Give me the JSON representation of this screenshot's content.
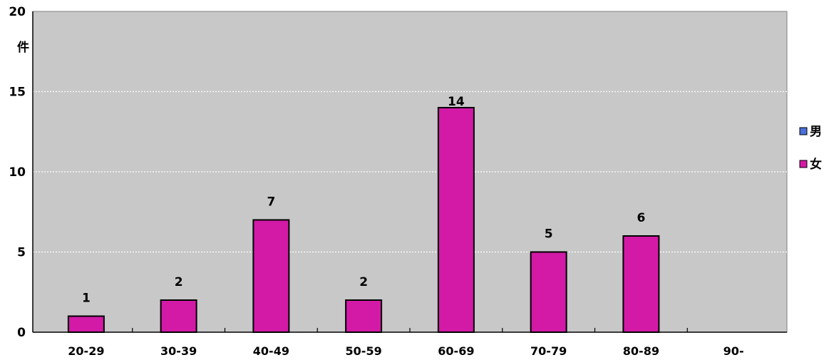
{
  "chart_data": {
    "type": "bar",
    "title": "",
    "xlabel": "",
    "ylabel": "件",
    "ylim": [
      0,
      20
    ],
    "yticks": [
      0,
      5,
      10,
      15,
      20
    ],
    "grid": true,
    "legend_position": "right",
    "categories": [
      "20-29",
      "30-39",
      "40-49",
      "50-59",
      "60-69",
      "70-79",
      "80-89",
      "90-"
    ],
    "series": [
      {
        "name": "男",
        "color": "#4a6fd8",
        "values": [
          null,
          null,
          null,
          null,
          null,
          null,
          null,
          null
        ]
      },
      {
        "name": "女",
        "color": "#d21aa6",
        "values": [
          1,
          2,
          7,
          2,
          14,
          5,
          6,
          null
        ]
      }
    ],
    "data_labels": [
      "1",
      "2",
      "7",
      "2",
      "14",
      "5",
      "6",
      ""
    ]
  },
  "colors": {
    "plot_background": "#c8c8c8",
    "gridline": "#ffffff",
    "axis": "#000000",
    "bar_stroke": "#000000"
  }
}
